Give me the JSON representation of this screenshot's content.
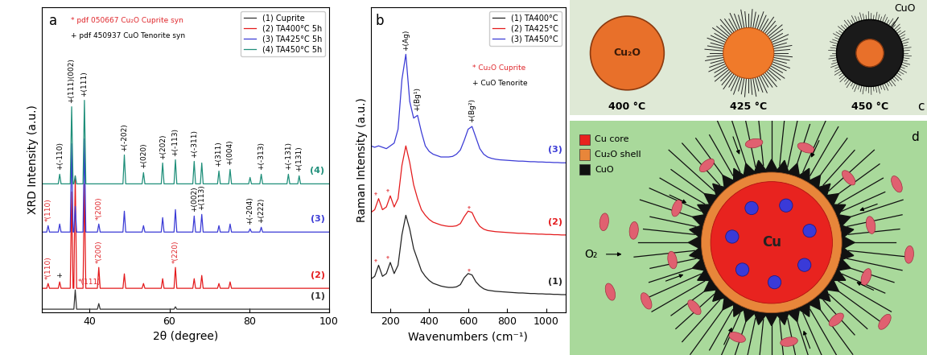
{
  "chart_data": [
    {
      "type": "line",
      "panel_label": "a",
      "x_label": "2θ (degree)",
      "y_label": "XRD Intensity (a.u.)",
      "xlim": [
        28,
        100
      ],
      "xticks": [
        40,
        60,
        80,
        100
      ],
      "ylim": [
        0,
        19
      ],
      "tick_labels": "x",
      "legend": "upper right",
      "references": [
        {
          "text": "* pdf 050667 Cu₂O Cuprite syn",
          "color": "#e0262b"
        },
        {
          "text": "+ pdf 450937 CuO Tenorite syn",
          "color": "#000000"
        }
      ],
      "series": [
        {
          "name": "(1) Cuprite",
          "tag": "(1)",
          "color": "#333333",
          "x": [
            28,
            36.05,
            36.4,
            36.75,
            41.95,
            42.3,
            42.65,
            61.15,
            61.5,
            61.85,
            100
          ],
          "values": [
            0.2,
            0.2,
            1.4,
            0.2,
            0.2,
            0.55,
            0.2,
            0.2,
            0.35,
            0.2,
            0.2
          ]
        },
        {
          "name": "(2) TA400°C 5h",
          "tag": "(2)",
          "color": "#e41a1c",
          "x": [
            28,
            29.25,
            29.6,
            29.95,
            32.15,
            32.5,
            32.85,
            35.15,
            35.5,
            35.85,
            36.05,
            36.4,
            36.75,
            38.35,
            38.7,
            39.05,
            41.95,
            42.3,
            42.65,
            48.35,
            48.7,
            49.05,
            53.15,
            53.5,
            53.85,
            57.95,
            58.3,
            58.65,
            61.15,
            61.5,
            61.85,
            65.85,
            66.2,
            66.55,
            67.75,
            68.1,
            68.45,
            72.05,
            72.4,
            72.75,
            74.85,
            75.2,
            75.55,
            100
          ],
          "values": [
            1.5,
            1.5,
            1.8,
            1.5,
            1.5,
            1.9,
            1.5,
            1.5,
            7.5,
            1.5,
            1.5,
            8.5,
            1.5,
            1.5,
            8.0,
            1.5,
            1.5,
            2.8,
            1.5,
            1.5,
            2.4,
            1.5,
            1.5,
            1.8,
            1.5,
            1.5,
            2.1,
            1.5,
            1.5,
            2.8,
            1.5,
            1.5,
            2.1,
            1.5,
            1.5,
            2.3,
            1.5,
            1.5,
            1.8,
            1.5,
            1.5,
            1.9,
            1.5,
            1.5
          ]
        },
        {
          "name": "(3) TA425°C 5h",
          "tag": "(3)",
          "color": "#3b3bd6",
          "x": [
            28,
            29.25,
            29.6,
            29.95,
            32.15,
            32.5,
            32.85,
            35.15,
            35.5,
            35.85,
            36.05,
            36.4,
            36.75,
            38.35,
            38.7,
            39.05,
            41.95,
            42.3,
            42.65,
            48.35,
            48.7,
            49.05,
            53.15,
            53.5,
            53.85,
            57.95,
            58.3,
            58.65,
            61.15,
            61.5,
            61.85,
            65.85,
            66.2,
            66.55,
            67.75,
            68.1,
            68.45,
            72.05,
            72.4,
            72.75,
            74.85,
            75.2,
            75.55,
            79.85,
            80.2,
            80.55,
            82.65,
            83.0,
            83.35,
            100
          ],
          "values": [
            5.0,
            5.0,
            5.4,
            5.0,
            5.0,
            5.5,
            5.0,
            5.0,
            10.5,
            5.0,
            5.0,
            6.6,
            5.0,
            5.0,
            10.8,
            5.0,
            5.0,
            5.5,
            5.0,
            5.0,
            6.3,
            5.0,
            5.0,
            5.4,
            5.0,
            5.0,
            5.9,
            5.0,
            5.0,
            6.4,
            5.0,
            5.0,
            6.0,
            5.0,
            5.0,
            6.1,
            5.0,
            5.0,
            5.4,
            5.0,
            5.0,
            5.5,
            5.0,
            5.0,
            5.2,
            5.0,
            5.0,
            5.3,
            5.0,
            5.0
          ]
        },
        {
          "name": "(4) TA450°C 5h",
          "tag": "(4)",
          "color": "#1f8f7a",
          "x": [
            28,
            32.15,
            32.5,
            32.85,
            35.15,
            35.5,
            35.85,
            36.05,
            36.4,
            36.75,
            38.35,
            38.7,
            39.05,
            48.35,
            48.7,
            49.05,
            53.15,
            53.5,
            53.85,
            57.95,
            58.3,
            58.65,
            61.15,
            61.5,
            61.85,
            65.85,
            66.2,
            66.55,
            67.75,
            68.1,
            68.45,
            72.05,
            72.4,
            72.75,
            74.85,
            75.2,
            75.55,
            79.85,
            80.2,
            80.55,
            82.65,
            83.0,
            83.35,
            89.45,
            89.8,
            90.15,
            92.15,
            92.5,
            92.85,
            100
          ],
          "values": [
            8.0,
            8.0,
            8.6,
            8.0,
            8.0,
            12.8,
            8.0,
            8.0,
            8.5,
            8.0,
            8.0,
            13.2,
            8.0,
            8.0,
            9.8,
            8.0,
            8.0,
            8.7,
            8.0,
            8.0,
            9.3,
            8.0,
            8.0,
            9.5,
            8.0,
            8.0,
            9.4,
            8.0,
            8.0,
            9.3,
            8.0,
            8.0,
            8.8,
            8.0,
            8.0,
            8.9,
            8.0,
            8.0,
            8.4,
            8.0,
            8.0,
            8.6,
            8.0,
            8.0,
            8.6,
            8.0,
            8.0,
            8.5,
            8.0,
            8.0
          ]
        }
      ],
      "annotations": [
        {
          "text": "+(-110)",
          "x": 32.5,
          "series": "(4)",
          "color": "#000000"
        },
        {
          "text": "+(111)(002)",
          "x": 35.5,
          "series": "(4)",
          "color": "#000000"
        },
        {
          "text": "+(111)",
          "x": 38.7,
          "series": "(4)",
          "color": "#000000"
        },
        {
          "text": "+(-202)",
          "x": 48.7,
          "series": "(4)",
          "color": "#000000"
        },
        {
          "text": "+(020)",
          "x": 53.5,
          "series": "(4)",
          "color": "#000000"
        },
        {
          "text": "+(202)",
          "x": 58.3,
          "series": "(4)",
          "color": "#000000"
        },
        {
          "text": "+(-113)",
          "x": 61.5,
          "series": "(4)",
          "color": "#000000"
        },
        {
          "text": "+(-311)",
          "x": 66.2,
          "series": "(4)",
          "color": "#000000"
        },
        {
          "text": "+(311)",
          "x": 72.4,
          "series": "(4)",
          "color": "#000000"
        },
        {
          "text": "+(004)",
          "x": 75.2,
          "series": "(4)",
          "color": "#000000"
        },
        {
          "text": "+(-313)",
          "x": 83.0,
          "series": "(4)",
          "color": "#000000"
        },
        {
          "text": "+(-131)",
          "x": 89.8,
          "series": "(4)",
          "color": "#000000"
        },
        {
          "text": "+(131)",
          "x": 92.5,
          "series": "(4)",
          "color": "#000000"
        },
        {
          "text": "*(110)",
          "x": 29.6,
          "series": "(3)",
          "color": "#e0262b"
        },
        {
          "text": "*(200)",
          "x": 42.3,
          "series": "(3)",
          "color": "#e0262b"
        },
        {
          "text": "+(002)",
          "x": 66.2,
          "series": "(3)",
          "color": "#000000"
        },
        {
          "text": "+(113)",
          "x": 68.1,
          "series": "(3)",
          "color": "#000000"
        },
        {
          "text": "+(-204)",
          "x": 80.2,
          "series": "(3)",
          "color": "#000000"
        },
        {
          "text": "+(222)",
          "x": 83.0,
          "series": "(3)",
          "color": "#000000"
        },
        {
          "text": "*(110)",
          "x": 29.6,
          "series": "(2)",
          "color": "#e0262b"
        },
        {
          "text": "+",
          "x": 32.5,
          "series": "(2)",
          "color": "#000000"
        },
        {
          "text": "*(200)",
          "x": 42.3,
          "series": "(2)",
          "color": "#e0262b"
        },
        {
          "text": "*(220)",
          "x": 61.5,
          "series": "(2)",
          "color": "#e0262b"
        },
        {
          "text": "*(111)",
          "x": 36.4,
          "series": "(1)",
          "color": "#e0262b"
        }
      ]
    },
    {
      "type": "line",
      "panel_label": "b",
      "x_label": "Wavenumbers (cm⁻¹)",
      "y_label": "Raman Intensity (a.u.)",
      "xlim": [
        100,
        1100
      ],
      "xticks": [
        200,
        400,
        600,
        800,
        1000
      ],
      "ylim": [
        0,
        11
      ],
      "tick_labels": "x",
      "legend": "upper right",
      "references": [
        {
          "text": "* Cu₂O Cuprite",
          "color": "#e0262b"
        },
        {
          "text": "+ CuO Tenorite",
          "color": "#000000"
        }
      ],
      "x": [
        100,
        120,
        140,
        160,
        180,
        200,
        220,
        240,
        260,
        280,
        300,
        320,
        340,
        360,
        380,
        400,
        420,
        440,
        460,
        480,
        500,
        520,
        540,
        560,
        580,
        600,
        620,
        640,
        660,
        680,
        700,
        720,
        740,
        760,
        780,
        800,
        820,
        840,
        860,
        880,
        900,
        920,
        940,
        960,
        980,
        1000,
        1020,
        1040,
        1060,
        1080,
        1100
      ],
      "series": [
        {
          "name": "(1) TA400°C",
          "tag": "(1)",
          "color": "#222222",
          "values": [
            1.2,
            1.3,
            1.7,
            1.3,
            1.4,
            1.8,
            1.4,
            1.7,
            2.8,
            3.5,
            3.0,
            2.3,
            1.9,
            1.5,
            1.3,
            1.15,
            1.05,
            1.0,
            0.95,
            0.92,
            0.9,
            0.9,
            0.92,
            1.0,
            1.25,
            1.4,
            1.35,
            1.1,
            0.95,
            0.85,
            0.8,
            0.78,
            0.76,
            0.75,
            0.74,
            0.73,
            0.72,
            0.71,
            0.7,
            0.7,
            0.69,
            0.68,
            0.68,
            0.67,
            0.67,
            0.66,
            0.66,
            0.65,
            0.65,
            0.64,
            0.64
          ]
        },
        {
          "name": "(2) TA425°C",
          "tag": "(2)",
          "color": "#e41a1c",
          "values": [
            3.6,
            3.7,
            4.1,
            3.7,
            3.8,
            4.2,
            3.8,
            4.1,
            5.3,
            6.0,
            5.4,
            4.6,
            4.1,
            3.7,
            3.5,
            3.35,
            3.25,
            3.2,
            3.15,
            3.12,
            3.1,
            3.1,
            3.12,
            3.2,
            3.45,
            3.65,
            3.6,
            3.3,
            3.1,
            3.0,
            2.95,
            2.93,
            2.91,
            2.9,
            2.89,
            2.88,
            2.87,
            2.86,
            2.85,
            2.85,
            2.84,
            2.83,
            2.83,
            2.82,
            2.82,
            2.81,
            2.81,
            2.8,
            2.8,
            2.79,
            2.79
          ]
        },
        {
          "name": "(3) TA450°C",
          "tag": "(3)",
          "color": "#3b3bd6",
          "values": [
            6.0,
            5.95,
            6.0,
            5.95,
            5.9,
            6.0,
            6.1,
            6.6,
            8.4,
            9.3,
            7.6,
            7.0,
            7.1,
            6.5,
            6.0,
            5.8,
            5.7,
            5.65,
            5.6,
            5.6,
            5.6,
            5.62,
            5.7,
            5.85,
            6.2,
            6.6,
            6.7,
            6.3,
            5.9,
            5.7,
            5.6,
            5.55,
            5.52,
            5.5,
            5.49,
            5.48,
            5.47,
            5.46,
            5.45,
            5.45,
            5.44,
            5.43,
            5.43,
            5.42,
            5.42,
            5.41,
            5.41,
            5.4,
            5.4,
            5.39,
            5.39
          ]
        }
      ],
      "annotations": [
        {
          "text": "+(Ag)",
          "x": 280,
          "series": "(3)",
          "color": "#000000"
        },
        {
          "text": "+(Bg¹)",
          "x": 340,
          "series": "(3)",
          "color": "#000000"
        },
        {
          "text": "+(Bg²)",
          "x": 620,
          "series": "(3)",
          "color": "#000000"
        },
        {
          "text": "*",
          "x": 140,
          "series": "(2)",
          "color": "#e0262b"
        },
        {
          "text": "*",
          "x": 200,
          "series": "(2)",
          "color": "#e0262b"
        },
        {
          "text": "*",
          "x": 620,
          "series": "(2)",
          "color": "#e0262b"
        },
        {
          "text": "*",
          "x": 140,
          "series": "(1)",
          "color": "#e0262b"
        },
        {
          "text": "*",
          "x": 200,
          "series": "(1)",
          "color": "#e0262b"
        },
        {
          "text": "*",
          "x": 620,
          "series": "(1)",
          "color": "#e0262b"
        }
      ]
    }
  ],
  "diagrams": {
    "c": {
      "panel_label": "c",
      "core_label": "Cu₂O",
      "temperatures": [
        "400 °C",
        "425 °C",
        "450 °C"
      ],
      "shell_label": "CuO"
    },
    "d": {
      "panel_label": "d",
      "core_label": "Cu",
      "gas_label": "O₂",
      "legend": [
        {
          "text": "Cu core",
          "color": "#e8231f"
        },
        {
          "text": "Cu₂O shell",
          "color": "#e8863a"
        },
        {
          "text": "CuO",
          "color": "#111111"
        }
      ]
    }
  }
}
